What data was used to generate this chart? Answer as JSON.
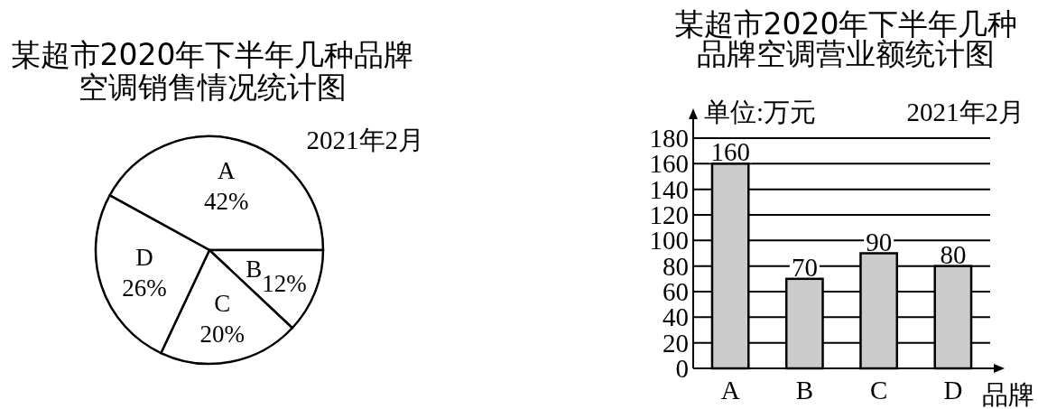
{
  "chart_data": [
    {
      "type": "pie",
      "title": "某超市2020年下半年几种品牌空调销售情况统计图",
      "categories": [
        "A",
        "B",
        "C",
        "D"
      ],
      "values": [
        42,
        12,
        20,
        26
      ],
      "colors": [
        "#ffffff",
        "#ffffff",
        "#ffffff",
        "#ffffff"
      ],
      "value_labels": [
        "42%",
        "12%",
        "20%",
        "26%"
      ],
      "annotations": [
        "2021年2月"
      ]
    },
    {
      "type": "bar",
      "title": "某超市2020年下半年几种品牌空调营业额统计图",
      "ylabel": "单位:万元",
      "xlabel": "品牌",
      "categories": [
        "A",
        "B",
        "C",
        "D"
      ],
      "values": [
        160,
        70,
        90,
        80
      ],
      "color": "#cccccc",
      "ylim": [
        0,
        180
      ],
      "yticks": [
        0,
        20,
        40,
        60,
        80,
        100,
        120,
        140,
        160,
        180
      ],
      "grid": "y",
      "data_labels": true,
      "annotations": [
        "2021年2月"
      ]
    }
  ]
}
